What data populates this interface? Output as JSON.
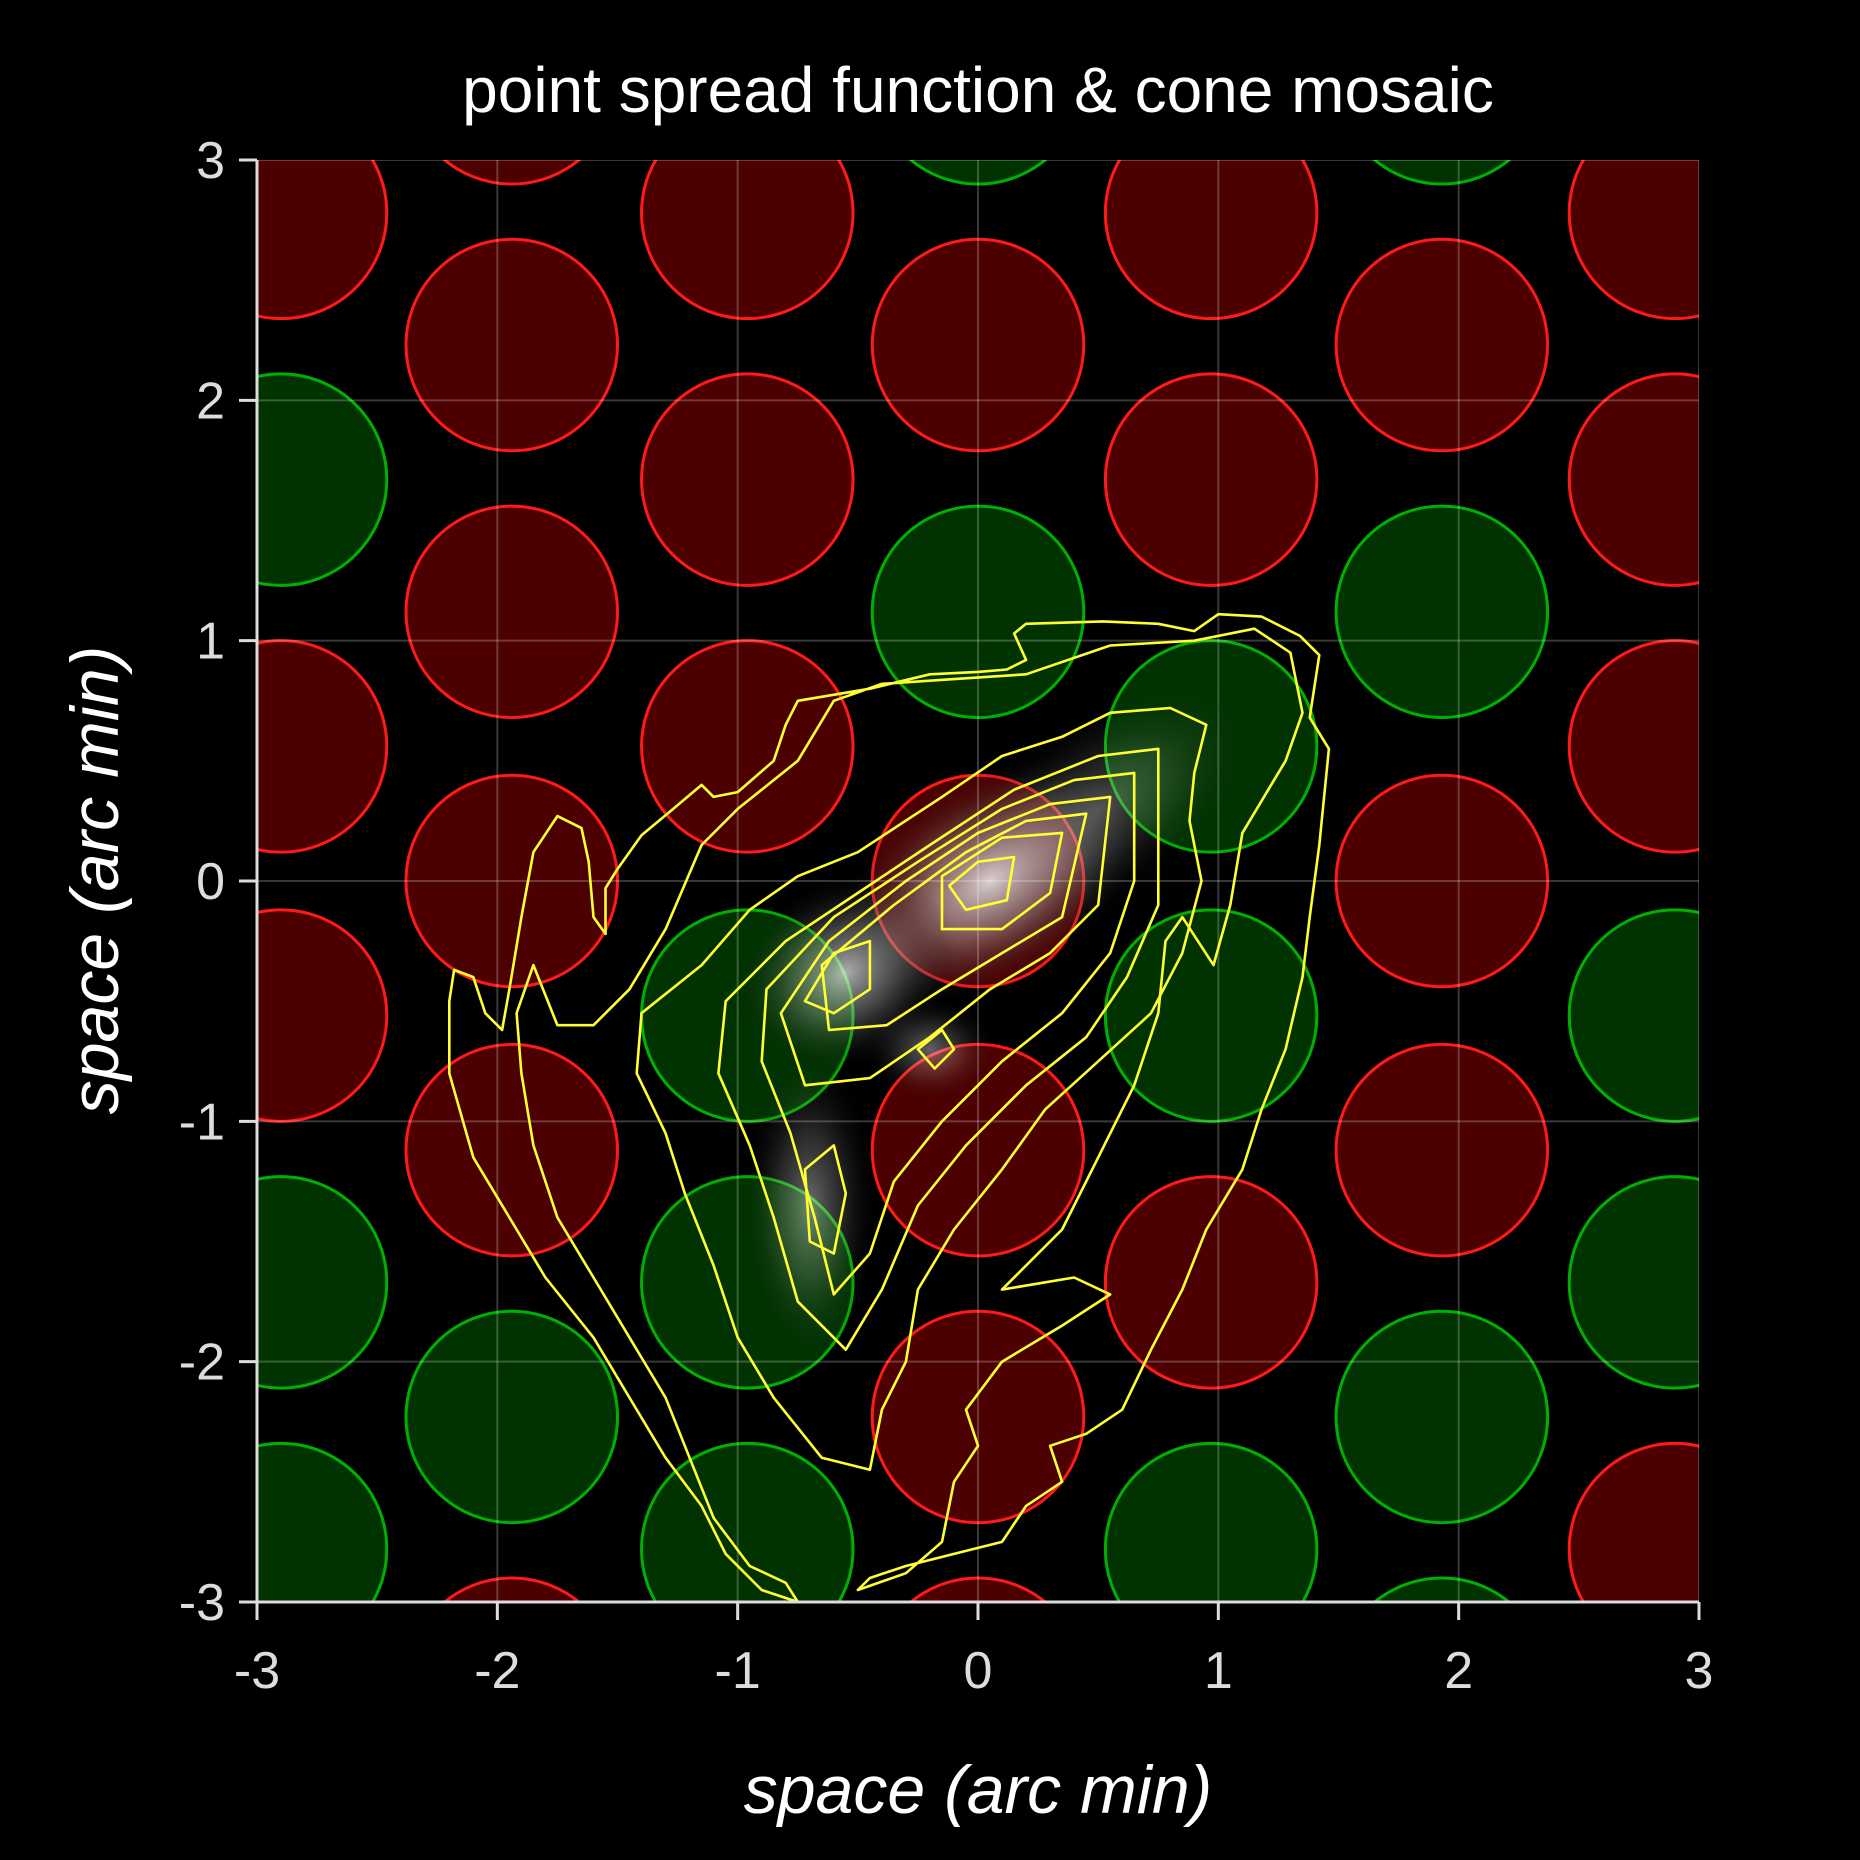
{
  "chart_data": {
    "type": "heatmap",
    "title": "point spread function & cone mosaic",
    "xlabel": "space (arc min)",
    "ylabel": "space (arc min)",
    "xlim": [
      -3,
      3
    ],
    "ylim": [
      -3,
      3
    ],
    "x_ticks": [
      -3,
      -2,
      -1,
      0,
      1,
      2,
      3
    ],
    "y_ticks": [
      -3,
      -2,
      -1,
      0,
      1,
      2,
      3
    ],
    "x_tick_labels": [
      "-3",
      "-2",
      "-1",
      "0",
      "1",
      "2",
      "3"
    ],
    "y_tick_labels": [
      "-3",
      "-2",
      "-1",
      "0",
      "1",
      "2",
      "3"
    ],
    "grid": true,
    "colors": {
      "background": "#000000",
      "L_cone_fill": "#4d0000",
      "L_cone_stroke": "#ff1a1a",
      "M_cone_fill": "#003300",
      "M_cone_stroke": "#00b000",
      "contour": "#ffff33",
      "psf_core": "#ffffff"
    },
    "cone_mosaic": {
      "cone_radius": 0.44,
      "cones": [
        {
          "x": -2.9,
          "y": 2.78,
          "type": "L"
        },
        {
          "x": -1.94,
          "y": 3.34,
          "type": "L"
        },
        {
          "x": -0.96,
          "y": 2.78,
          "type": "L"
        },
        {
          "x": 0.0,
          "y": 3.34,
          "type": "M"
        },
        {
          "x": 0.97,
          "y": 2.78,
          "type": "L"
        },
        {
          "x": 1.93,
          "y": 3.34,
          "type": "M"
        },
        {
          "x": 2.9,
          "y": 2.78,
          "type": "L"
        },
        {
          "x": -1.94,
          "y": 2.23,
          "type": "L"
        },
        {
          "x": 0.0,
          "y": 2.23,
          "type": "L"
        },
        {
          "x": 1.93,
          "y": 2.23,
          "type": "L"
        },
        {
          "x": -2.9,
          "y": 1.67,
          "type": "M"
        },
        {
          "x": -0.96,
          "y": 1.67,
          "type": "L"
        },
        {
          "x": 0.97,
          "y": 1.67,
          "type": "L"
        },
        {
          "x": 2.9,
          "y": 1.67,
          "type": "L"
        },
        {
          "x": -1.94,
          "y": 1.12,
          "type": "L"
        },
        {
          "x": 0.0,
          "y": 1.12,
          "type": "M"
        },
        {
          "x": 1.93,
          "y": 1.12,
          "type": "M"
        },
        {
          "x": -2.9,
          "y": 0.56,
          "type": "L"
        },
        {
          "x": -0.96,
          "y": 0.56,
          "type": "L"
        },
        {
          "x": 0.97,
          "y": 0.56,
          "type": "M"
        },
        {
          "x": 2.9,
          "y": 0.56,
          "type": "L"
        },
        {
          "x": -1.94,
          "y": 0.0,
          "type": "L"
        },
        {
          "x": 0.0,
          "y": 0.0,
          "type": "L"
        },
        {
          "x": 1.93,
          "y": 0.0,
          "type": "L"
        },
        {
          "x": -2.9,
          "y": -0.56,
          "type": "L"
        },
        {
          "x": -0.96,
          "y": -0.56,
          "type": "M"
        },
        {
          "x": 0.97,
          "y": -0.56,
          "type": "M"
        },
        {
          "x": 2.9,
          "y": -0.56,
          "type": "M"
        },
        {
          "x": -1.94,
          "y": -1.12,
          "type": "L"
        },
        {
          "x": 0.0,
          "y": -1.12,
          "type": "L"
        },
        {
          "x": 1.93,
          "y": -1.12,
          "type": "L"
        },
        {
          "x": -2.9,
          "y": -1.67,
          "type": "M"
        },
        {
          "x": -0.96,
          "y": -1.67,
          "type": "M"
        },
        {
          "x": 0.97,
          "y": -1.67,
          "type": "L"
        },
        {
          "x": 2.9,
          "y": -1.67,
          "type": "M"
        },
        {
          "x": -1.94,
          "y": -2.23,
          "type": "M"
        },
        {
          "x": 0.0,
          "y": -2.23,
          "type": "L"
        },
        {
          "x": 1.93,
          "y": -2.23,
          "type": "M"
        },
        {
          "x": -2.9,
          "y": -2.78,
          "type": "M"
        },
        {
          "x": -0.96,
          "y": -2.78,
          "type": "M"
        },
        {
          "x": 0.97,
          "y": -2.78,
          "type": "M"
        },
        {
          "x": 2.9,
          "y": -2.78,
          "type": "L"
        },
        {
          "x": -1.94,
          "y": -3.34,
          "type": "L"
        },
        {
          "x": 0.0,
          "y": -3.34,
          "type": "L"
        },
        {
          "x": 1.93,
          "y": -3.34,
          "type": "M"
        }
      ]
    },
    "psf_peaks": [
      {
        "x": 0.05,
        "y": 0.0,
        "weight": 1.0,
        "sx": 0.32,
        "sy": 0.2,
        "angle": 30
      },
      {
        "x": -0.55,
        "y": -0.38,
        "weight": 0.8,
        "sx": 0.22,
        "sy": 0.18,
        "angle": 30
      },
      {
        "x": -0.7,
        "y": -1.35,
        "weight": 0.5,
        "sx": 0.13,
        "sy": 0.3,
        "angle": 0
      },
      {
        "x": -0.2,
        "y": -0.7,
        "weight": 0.45,
        "sx": 0.13,
        "sy": 0.1,
        "angle": 0
      },
      {
        "x": 0.5,
        "y": 0.3,
        "weight": 0.35,
        "sx": 0.35,
        "sy": 0.18,
        "angle": 35
      }
    ],
    "contours": [
      [
        [
          1.46,
          0.55
        ],
        [
          1.38,
          0.68
        ],
        [
          1.42,
          0.94
        ],
        [
          1.34,
          1.02
        ],
        [
          1.18,
          1.1
        ],
        [
          1.0,
          1.11
        ],
        [
          0.9,
          1.04
        ],
        [
          0.75,
          1.07
        ],
        [
          0.52,
          1.08
        ],
        [
          0.2,
          1.07
        ],
        [
          0.15,
          1.03
        ],
        [
          0.2,
          0.92
        ],
        [
          0.12,
          0.88
        ],
        [
          0.0,
          0.87
        ],
        [
          -0.2,
          0.86
        ],
        [
          -0.45,
          0.8
        ],
        [
          -0.75,
          0.75
        ],
        [
          -0.8,
          0.65
        ],
        [
          -0.85,
          0.5
        ],
        [
          -1.0,
          0.37
        ],
        [
          -1.1,
          0.35
        ],
        [
          -1.15,
          0.4
        ],
        [
          -1.28,
          0.29
        ],
        [
          -1.4,
          0.19
        ],
        [
          -1.5,
          0.05
        ],
        [
          -1.55,
          -0.03
        ],
        [
          -1.55,
          -0.22
        ],
        [
          -1.6,
          -0.15
        ],
        [
          -1.62,
          0.08
        ],
        [
          -1.65,
          0.22
        ],
        [
          -1.75,
          0.27
        ],
        [
          -1.85,
          0.12
        ],
        [
          -1.9,
          -0.15
        ],
        [
          -1.95,
          -0.45
        ],
        [
          -1.98,
          -0.62
        ],
        [
          -2.05,
          -0.55
        ],
        [
          -2.1,
          -0.4
        ],
        [
          -2.18,
          -0.37
        ],
        [
          -2.2,
          -0.5
        ],
        [
          -2.2,
          -0.8
        ],
        [
          -2.1,
          -1.15
        ],
        [
          -1.95,
          -1.4
        ],
        [
          -1.8,
          -1.65
        ],
        [
          -1.6,
          -1.9
        ],
        [
          -1.45,
          -2.15
        ],
        [
          -1.3,
          -2.4
        ],
        [
          -1.15,
          -2.6
        ],
        [
          -1.05,
          -2.8
        ],
        [
          -0.9,
          -2.95
        ],
        [
          -0.75,
          -3.0
        ],
        [
          -0.8,
          -2.92
        ],
        [
          -0.95,
          -2.85
        ],
        [
          -1.1,
          -2.65
        ],
        [
          -1.2,
          -2.4
        ],
        [
          -1.3,
          -2.15
        ],
        [
          -1.45,
          -1.9
        ],
        [
          -1.6,
          -1.65
        ],
        [
          -1.75,
          -1.4
        ],
        [
          -1.85,
          -1.1
        ],
        [
          -1.9,
          -0.8
        ],
        [
          -1.92,
          -0.55
        ],
        [
          -1.85,
          -0.35
        ],
        [
          -1.75,
          -0.6
        ],
        [
          -1.6,
          -0.6
        ],
        [
          -1.45,
          -0.45
        ],
        [
          -1.3,
          -0.2
        ],
        [
          -1.15,
          0.15
        ],
        [
          -1.0,
          0.3
        ],
        [
          -0.75,
          0.5
        ],
        [
          -0.6,
          0.75
        ],
        [
          -0.4,
          0.82
        ],
        [
          -0.1,
          0.84
        ],
        [
          0.2,
          0.86
        ],
        [
          0.55,
          0.98
        ],
        [
          0.9,
          1.0
        ],
        [
          1.15,
          1.05
        ],
        [
          1.3,
          0.95
        ],
        [
          1.35,
          0.7
        ],
        [
          1.28,
          0.5
        ],
        [
          1.1,
          0.2
        ],
        [
          1.05,
          -0.1
        ],
        [
          0.98,
          -0.35
        ],
        [
          0.85,
          -0.15
        ],
        [
          0.78,
          -0.25
        ],
        [
          0.75,
          -0.55
        ],
        [
          0.65,
          -0.85
        ],
        [
          0.5,
          -1.15
        ],
        [
          0.35,
          -1.45
        ],
        [
          0.1,
          -1.7
        ],
        [
          0.4,
          -1.65
        ],
        [
          0.55,
          -1.72
        ],
        [
          0.35,
          -1.85
        ],
        [
          0.1,
          -2.0
        ],
        [
          -0.05,
          -2.2
        ],
        [
          0.0,
          -2.35
        ],
        [
          -0.1,
          -2.5
        ],
        [
          -0.15,
          -2.75
        ],
        [
          -0.3,
          -2.88
        ],
        [
          -0.5,
          -2.95
        ],
        [
          -0.45,
          -2.9
        ],
        [
          -0.3,
          -2.85
        ],
        [
          -0.1,
          -2.8
        ],
        [
          0.1,
          -2.75
        ],
        [
          0.2,
          -2.6
        ],
        [
          0.35,
          -2.5
        ],
        [
          0.3,
          -2.35
        ],
        [
          0.45,
          -2.3
        ],
        [
          0.6,
          -2.2
        ],
        [
          0.72,
          -1.95
        ],
        [
          0.85,
          -1.7
        ],
        [
          0.95,
          -1.45
        ],
        [
          1.1,
          -1.2
        ],
        [
          1.18,
          -0.95
        ],
        [
          1.28,
          -0.7
        ],
        [
          1.35,
          -0.4
        ],
        [
          1.38,
          -0.15
        ],
        [
          1.42,
          0.15
        ],
        [
          1.46,
          0.55
        ]
      ],
      [
        [
          0.95,
          0.65
        ],
        [
          0.8,
          0.72
        ],
        [
          0.55,
          0.7
        ],
        [
          0.35,
          0.6
        ],
        [
          0.1,
          0.52
        ],
        [
          -0.15,
          0.35
        ],
        [
          -0.5,
          0.12
        ],
        [
          -0.75,
          0.02
        ],
        [
          -0.95,
          -0.12
        ],
        [
          -1.15,
          -0.35
        ],
        [
          -1.4,
          -0.55
        ],
        [
          -1.42,
          -0.8
        ],
        [
          -1.3,
          -1.05
        ],
        [
          -1.22,
          -1.3
        ],
        [
          -1.1,
          -1.6
        ],
        [
          -1.0,
          -1.9
        ],
        [
          -0.85,
          -2.15
        ],
        [
          -0.65,
          -2.4
        ],
        [
          -0.45,
          -2.45
        ],
        [
          -0.4,
          -2.2
        ],
        [
          -0.3,
          -2.0
        ],
        [
          -0.25,
          -1.7
        ],
        [
          -0.1,
          -1.45
        ],
        [
          0.1,
          -1.2
        ],
        [
          0.28,
          -0.95
        ],
        [
          0.5,
          -0.75
        ],
        [
          0.72,
          -0.55
        ],
        [
          0.85,
          -0.3
        ],
        [
          0.93,
          0.0
        ],
        [
          0.88,
          0.25
        ],
        [
          0.9,
          0.45
        ],
        [
          0.95,
          0.65
        ]
      ],
      [
        [
          0.75,
          0.55
        ],
        [
          0.5,
          0.52
        ],
        [
          0.15,
          0.38
        ],
        [
          -0.2,
          0.15
        ],
        [
          -0.5,
          -0.05
        ],
        [
          -0.8,
          -0.25
        ],
        [
          -1.05,
          -0.5
        ],
        [
          -1.08,
          -0.8
        ],
        [
          -0.95,
          -1.1
        ],
        [
          -0.85,
          -1.4
        ],
        [
          -0.75,
          -1.75
        ],
        [
          -0.55,
          -1.95
        ],
        [
          -0.4,
          -1.7
        ],
        [
          -0.25,
          -1.35
        ],
        [
          -0.05,
          -1.1
        ],
        [
          0.2,
          -0.85
        ],
        [
          0.45,
          -0.65
        ],
        [
          0.62,
          -0.4
        ],
        [
          0.75,
          -0.1
        ],
        [
          0.75,
          0.2
        ],
        [
          0.75,
          0.55
        ]
      ],
      [
        [
          0.65,
          0.45
        ],
        [
          0.4,
          0.42
        ],
        [
          0.1,
          0.3
        ],
        [
          -0.25,
          0.08
        ],
        [
          -0.6,
          -0.15
        ],
        [
          -0.88,
          -0.45
        ],
        [
          -0.9,
          -0.75
        ],
        [
          -0.78,
          -1.05
        ],
        [
          -0.68,
          -1.4
        ],
        [
          -0.6,
          -1.72
        ],
        [
          -0.45,
          -1.55
        ],
        [
          -0.35,
          -1.25
        ],
        [
          -0.15,
          -1.0
        ],
        [
          0.1,
          -0.75
        ],
        [
          0.35,
          -0.55
        ],
        [
          0.55,
          -0.3
        ],
        [
          0.65,
          0.0
        ],
        [
          0.65,
          0.45
        ]
      ],
      [
        [
          0.55,
          0.35
        ],
        [
          0.3,
          0.32
        ],
        [
          0.0,
          0.2
        ],
        [
          -0.3,
          0.0
        ],
        [
          -0.62,
          -0.25
        ],
        [
          -0.82,
          -0.55
        ],
        [
          -0.72,
          -0.85
        ],
        [
          -0.45,
          -0.82
        ],
        [
          -0.2,
          -0.65
        ],
        [
          0.05,
          -0.45
        ],
        [
          0.3,
          -0.3
        ],
        [
          0.5,
          -0.1
        ],
        [
          0.55,
          0.35
        ]
      ],
      [
        [
          0.45,
          0.28
        ],
        [
          0.2,
          0.25
        ],
        [
          -0.05,
          0.12
        ],
        [
          -0.35,
          -0.1
        ],
        [
          -0.65,
          -0.35
        ],
        [
          -0.62,
          -0.62
        ],
        [
          -0.38,
          -0.6
        ],
        [
          -0.15,
          -0.45
        ],
        [
          0.1,
          -0.3
        ],
        [
          0.35,
          -0.15
        ],
        [
          0.45,
          0.28
        ]
      ],
      [
        [
          0.35,
          0.2
        ],
        [
          0.1,
          0.18
        ],
        [
          -0.15,
          0.02
        ],
        [
          -0.15,
          -0.2
        ],
        [
          0.1,
          -0.2
        ],
        [
          0.3,
          -0.05
        ],
        [
          0.35,
          0.2
        ]
      ],
      [
        [
          0.15,
          0.1
        ],
        [
          0.0,
          0.08
        ],
        [
          -0.12,
          -0.02
        ],
        [
          -0.05,
          -0.12
        ],
        [
          0.12,
          -0.08
        ],
        [
          0.15,
          0.1
        ]
      ],
      [
        [
          -0.45,
          -0.25
        ],
        [
          -0.6,
          -0.3
        ],
        [
          -0.72,
          -0.5
        ],
        [
          -0.6,
          -0.55
        ],
        [
          -0.45,
          -0.45
        ],
        [
          -0.45,
          -0.25
        ]
      ],
      [
        [
          -0.6,
          -1.1
        ],
        [
          -0.72,
          -1.2
        ],
        [
          -0.7,
          -1.5
        ],
        [
          -0.6,
          -1.55
        ],
        [
          -0.55,
          -1.3
        ],
        [
          -0.6,
          -1.1
        ]
      ],
      [
        [
          -0.15,
          -0.62
        ],
        [
          -0.25,
          -0.7
        ],
        [
          -0.18,
          -0.78
        ],
        [
          -0.1,
          -0.7
        ],
        [
          -0.15,
          -0.62
        ]
      ]
    ]
  }
}
